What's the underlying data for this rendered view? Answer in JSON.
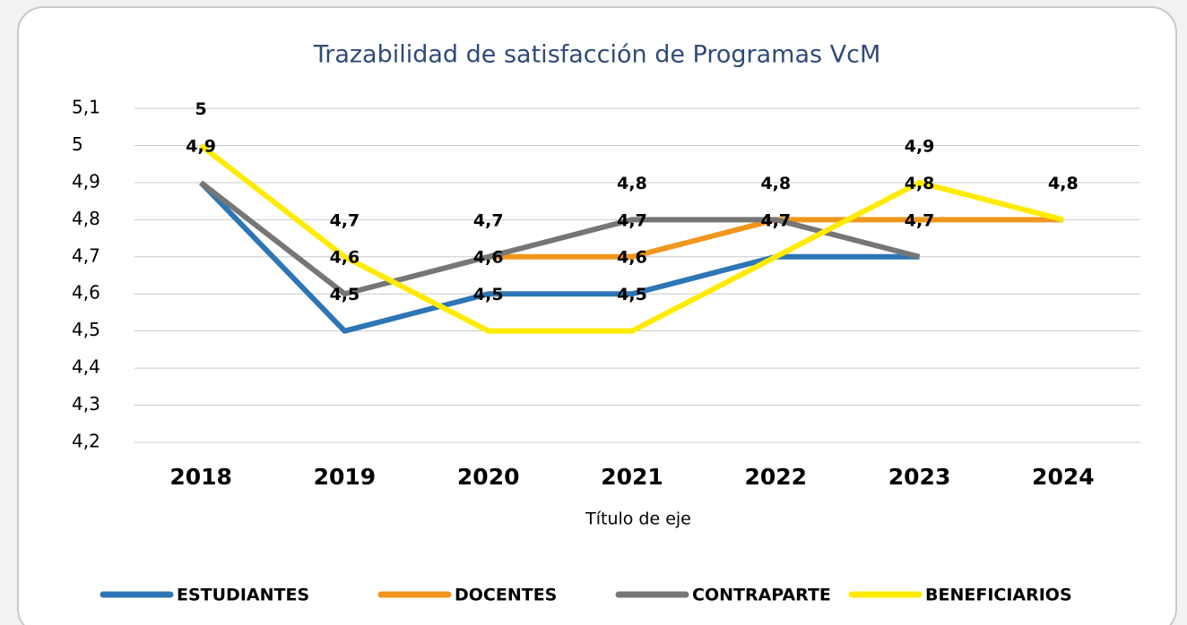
{
  "chart_data": {
    "type": "line",
    "title": "Trazabilidad de satisfacción de Programas VcM",
    "x_label": "Título de eje",
    "categories": [
      "2018",
      "2019",
      "2020",
      "2021",
      "2022",
      "2023",
      "2024"
    ],
    "ylim": [
      4.2,
      5.1
    ],
    "yticks": [
      {
        "value": 4.2,
        "label": "4,2"
      },
      {
        "value": 4.3,
        "label": "4,3"
      },
      {
        "value": 4.4,
        "label": "4,4"
      },
      {
        "value": 4.5,
        "label": "4,5"
      },
      {
        "value": 4.6,
        "label": "4,6"
      },
      {
        "value": 4.7,
        "label": "4,7"
      },
      {
        "value": 4.8,
        "label": "4,8"
      },
      {
        "value": 4.9,
        "label": "4,9"
      },
      5,
      {
        "value": 5.1,
        "label": "5,1"
      }
    ],
    "grid": true,
    "legend": "bottom",
    "series": [
      {
        "name": "ESTUDIANTES",
        "color": "#2e75b6",
        "values": [
          4.9,
          4.5,
          4.6,
          4.6,
          4.7,
          4.7,
          null
        ],
        "value_labels": [
          "4,9",
          "4,5",
          "4,6",
          "4,6",
          "4,7",
          "4,7",
          null
        ]
      },
      {
        "name": "DOCENTES",
        "color": "#f0961e",
        "values": [
          null,
          null,
          4.7,
          4.7,
          4.8,
          4.8,
          4.8
        ],
        "value_labels": [
          null,
          null,
          "4,7",
          "4,7",
          "4,8",
          "4,8",
          "4,8"
        ]
      },
      {
        "name": "CONTRAPARTE",
        "color": "#767676",
        "values": [
          4.9,
          4.6,
          4.7,
          4.8,
          4.8,
          4.7,
          null
        ],
        "value_labels": [
          null,
          "4,6",
          null,
          "4,8",
          null,
          null,
          null
        ]
      },
      {
        "name": "BENEFICIARIOS",
        "color": "#ffeb00",
        "values": [
          5,
          4.7,
          4.5,
          4.5,
          4.7,
          4.9,
          4.8
        ],
        "value_labels": [
          "5",
          "4,7",
          "4,5",
          "4,5",
          "4,7",
          "4,9",
          "4,8"
        ]
      }
    ]
  }
}
